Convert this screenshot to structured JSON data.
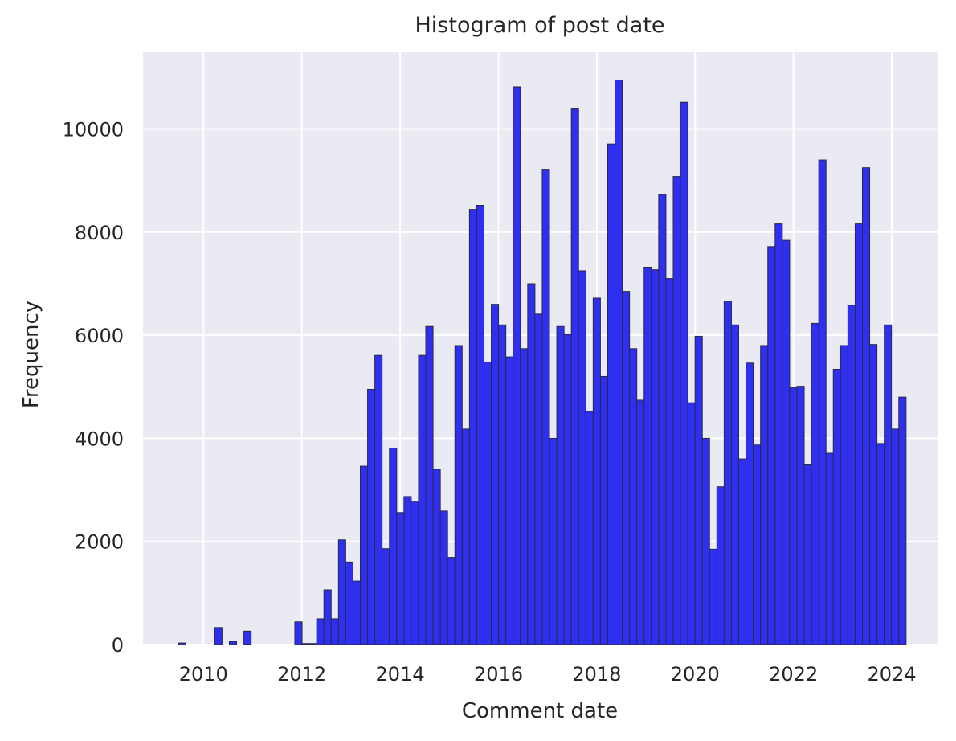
{
  "chart_data": {
    "type": "histogram",
    "title": "Histogram of post date",
    "x_label": "Comment date",
    "y_label": "Frequency",
    "color": "#2f2ff2",
    "edgecolor": "#2a2a40",
    "grid": true,
    "xlim": [
      2008.77,
      2024.93
    ],
    "ylim": [
      0,
      11490
    ],
    "xticks": [
      2010,
      2012,
      2014,
      2016,
      2018,
      2020,
      2022,
      2024
    ],
    "yticks": [
      0,
      2000,
      4000,
      6000,
      8000,
      10000
    ],
    "bins": [
      2009.49,
      2009.638,
      2009.786,
      2009.934,
      2010.082,
      2010.23,
      2010.378,
      2010.526,
      2010.674,
      2010.822,
      2010.97,
      2011.118,
      2011.266,
      2011.414,
      2011.562,
      2011.71,
      2011.858,
      2012.006,
      2012.154,
      2012.302,
      2012.45,
      2012.598,
      2012.746,
      2012.894,
      2013.042,
      2013.19,
      2013.338,
      2013.486,
      2013.634,
      2013.782,
      2013.93,
      2014.078,
      2014.226,
      2014.374,
      2014.522,
      2014.67,
      2014.818,
      2014.966,
      2015.114,
      2015.262,
      2015.41,
      2015.558,
      2015.706,
      2015.854,
      2016.002,
      2016.15,
      2016.298,
      2016.446,
      2016.594,
      2016.742,
      2016.89,
      2017.038,
      2017.186,
      2017.334,
      2017.482,
      2017.63,
      2017.778,
      2017.926,
      2018.074,
      2018.222,
      2018.37,
      2018.518,
      2018.666,
      2018.814,
      2018.962,
      2019.11,
      2019.258,
      2019.406,
      2019.554,
      2019.702,
      2019.85,
      2019.998,
      2020.146,
      2020.294,
      2020.442,
      2020.59,
      2020.738,
      2020.886,
      2021.034,
      2021.182,
      2021.33,
      2021.478,
      2021.626,
      2021.774,
      2021.922,
      2022.07,
      2022.218,
      2022.366,
      2022.514,
      2022.662,
      2022.81,
      2022.958,
      2023.106,
      2023.254,
      2023.402,
      2023.55,
      2023.698,
      2023.846,
      2023.994,
      2024.142,
      2024.29
    ],
    "values": [
      30,
      0,
      0,
      0,
      0,
      330,
      0,
      60,
      0,
      260,
      0,
      0,
      0,
      0,
      0,
      0,
      440,
      20,
      20,
      500,
      1060,
      500,
      2030,
      1600,
      1230,
      3460,
      4950,
      5610,
      1860,
      3810,
      2560,
      2870,
      2780,
      5610,
      6170,
      3400,
      2590,
      1690,
      5800,
      4180,
      8440,
      8520,
      5480,
      6600,
      6200,
      5580,
      10820,
      5740,
      7000,
      6410,
      9220,
      4000,
      6170,
      6010,
      10390,
      7250,
      4520,
      6720,
      5200,
      9710,
      10950,
      6850,
      5740,
      4740,
      7320,
      7270,
      8730,
      7100,
      9080,
      10520,
      4690,
      5980,
      4000,
      1850,
      3060,
      6660,
      6200,
      3600,
      5460,
      3870,
      5800,
      7720,
      8160,
      7840,
      4980,
      5010,
      3500,
      6230,
      9400,
      3710,
      5340,
      5800,
      6580,
      8160,
      9250,
      5820,
      3900,
      6200,
      4180,
      4800
    ]
  }
}
